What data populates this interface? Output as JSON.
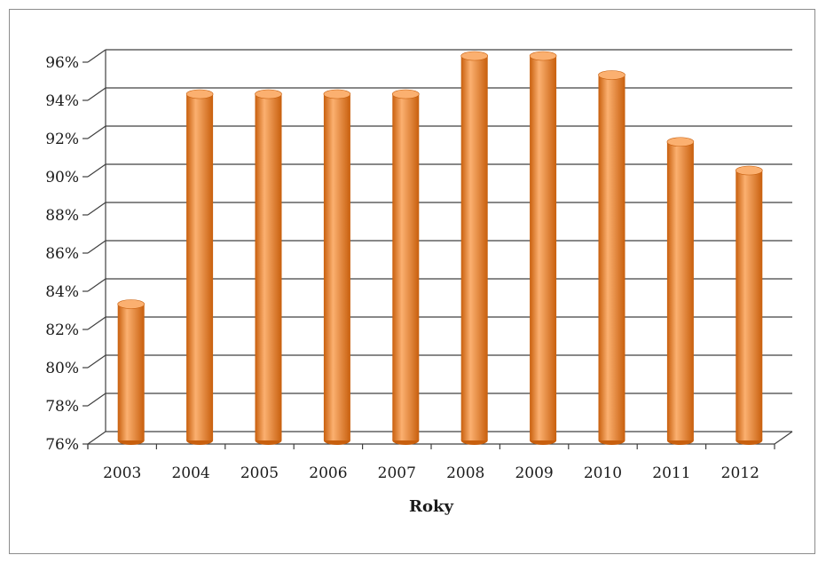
{
  "chart_data": {
    "type": "bar",
    "title": "",
    "xlabel": "Roky",
    "ylabel": "",
    "categories": [
      "2003",
      "2004",
      "2005",
      "2006",
      "2007",
      "2008",
      "2009",
      "2010",
      "2011",
      "2012"
    ],
    "series": [
      {
        "values": [
          83,
          94,
          94,
          94,
          94,
          96,
          96,
          95,
          91.5,
          90
        ]
      }
    ],
    "ylim": [
      76,
      96
    ],
    "yticks": [
      "76%",
      "78%",
      "80%",
      "82%",
      "84%",
      "86%",
      "88%",
      "90%",
      "92%",
      "94%",
      "96%"
    ],
    "grid": true,
    "legend": "none",
    "style": "3d-cylinder",
    "colors": {
      "bar": "#f58a2c",
      "bar_dark": "#c85f0d",
      "bar_light": "#fbb070",
      "grid": "#404040"
    }
  }
}
